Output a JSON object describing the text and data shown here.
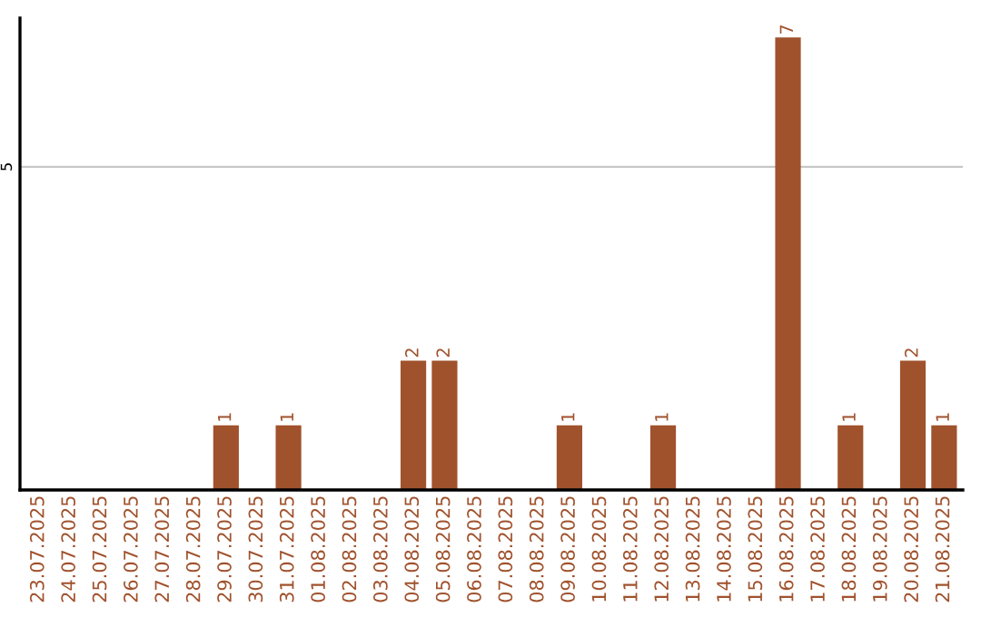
{
  "chart_data": {
    "type": "bar",
    "categories": [
      "23.07.2025",
      "24.07.2025",
      "25.07.2025",
      "26.07.2025",
      "27.07.2025",
      "28.07.2025",
      "29.07.2025",
      "30.07.2025",
      "31.07.2025",
      "01.08.2025",
      "02.08.2025",
      "03.08.2025",
      "04.08.2025",
      "05.08.2025",
      "06.08.2025",
      "07.08.2025",
      "08.08.2025",
      "09.08.2025",
      "10.08.2025",
      "11.08.2025",
      "12.08.2025",
      "13.08.2025",
      "14.08.2025",
      "15.08.2025",
      "16.08.2025",
      "17.08.2025",
      "18.08.2025",
      "19.08.2025",
      "20.08.2025",
      "21.08.2025"
    ],
    "values": [
      0,
      0,
      0,
      0,
      0,
      0,
      1,
      0,
      1,
      0,
      0,
      0,
      2,
      2,
      0,
      0,
      0,
      1,
      0,
      0,
      1,
      0,
      0,
      0,
      7,
      0,
      1,
      0,
      2,
      1
    ],
    "value_labels": [
      null,
      null,
      null,
      null,
      null,
      null,
      "1",
      null,
      "1",
      null,
      null,
      null,
      "2",
      "2",
      null,
      null,
      null,
      "1",
      null,
      null,
      "1",
      null,
      null,
      null,
      "7",
      null,
      "1",
      null,
      "2",
      "1"
    ],
    "color": "#a0522d",
    "ylim": [
      0,
      7.3
    ],
    "yticks": [
      5
    ],
    "grid": "y"
  }
}
